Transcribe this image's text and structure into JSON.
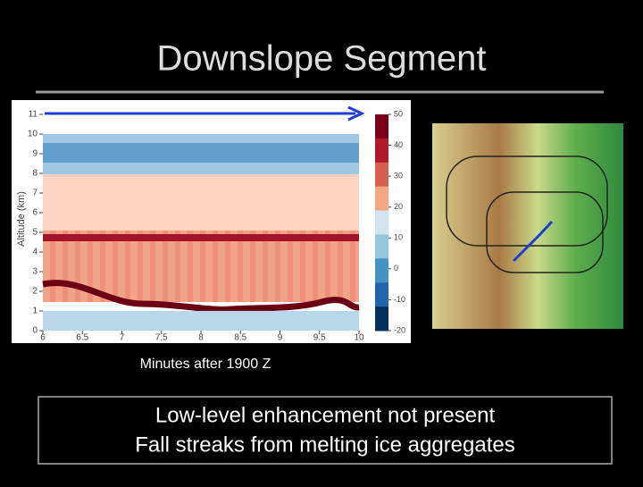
{
  "title": "Downslope Segment",
  "figure": {
    "y_label": "Altitude (km)",
    "xticks": [
      6,
      6.5,
      7,
      7.5,
      8,
      8.5,
      9,
      9.5,
      10
    ],
    "yticks": [
      0,
      1,
      2,
      3,
      4,
      5,
      6,
      7,
      8,
      9,
      10,
      11
    ],
    "colorbar_ticks": [
      50,
      40,
      30,
      20,
      10,
      0,
      -10,
      -20
    ],
    "caption": "Minutes after 1900 Z"
  },
  "notes": [
    "Low-level enhancement not present",
    "Fall streaks from melting ice aggregates"
  ]
}
